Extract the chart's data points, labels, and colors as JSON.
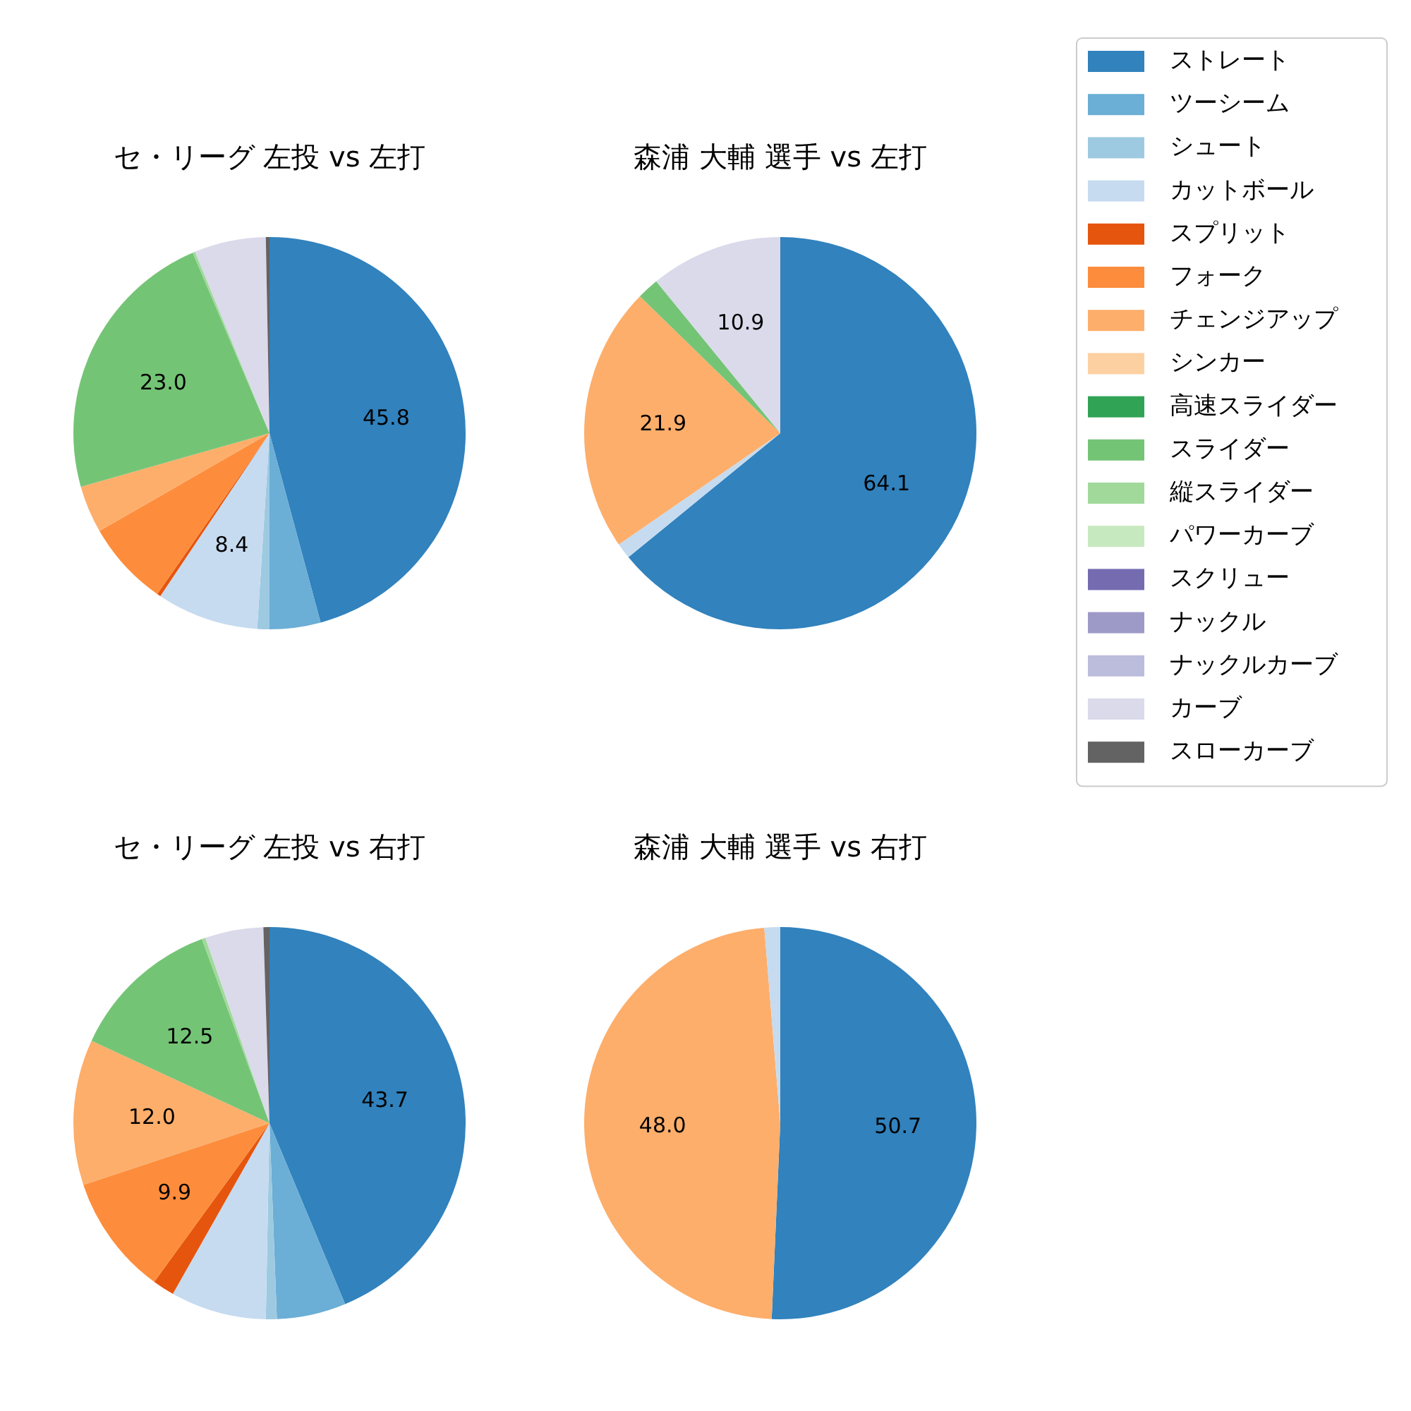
{
  "chart_data": [
    {
      "type": "pie",
      "title": "セ・リーグ 左投 vs 左打",
      "legend": "right",
      "categories": [
        "ストレート",
        "ツーシーム",
        "シュート",
        "カットボール",
        "スプリット",
        "フォーク",
        "チェンジアップ",
        "シンカー",
        "高速スライダー",
        "スライダー",
        "縦スライダー",
        "パワーカーブ",
        "スクリュー",
        "ナックル",
        "ナックルカーブ",
        "カーブ",
        "スローカーブ"
      ],
      "colors": [
        "#3182bd",
        "#6baed6",
        "#9ecae1",
        "#c6dbef",
        "#e6550d",
        "#fd8d3c",
        "#fdae6b",
        "#fdd0a2",
        "#31a354",
        "#74c476",
        "#a1d99b",
        "#c7e9c0",
        "#756bb1",
        "#9e9ac8",
        "#bcbddc",
        "#dadaeb",
        "#636363"
      ],
      "values": [
        45.8,
        4.2,
        1.0,
        8.4,
        0.3,
        7.0,
        3.9,
        0,
        0,
        23.0,
        0.2,
        0,
        0,
        0,
        0,
        5.9,
        0.3
      ],
      "value_labels": [
        "45.8",
        null,
        null,
        "8.4",
        null,
        null,
        null,
        null,
        null,
        "23.0",
        null,
        null,
        null,
        null,
        null,
        null,
        null
      ]
    },
    {
      "type": "pie",
      "title": "森浦 大輔 選手 vs 左打",
      "categories": [
        null,
        null,
        null,
        null,
        null
      ],
      "colors": [
        "#3182bd",
        "#c6dbef",
        "#fdae6b",
        "#74c476",
        "#dadaeb"
      ],
      "values": [
        64.1,
        1.3,
        21.9,
        1.8,
        10.9
      ],
      "value_labels": [
        "64.1",
        null,
        "21.9",
        null,
        "10.9"
      ]
    },
    {
      "type": "pie",
      "title": "セ・リーグ 左投 vs 右打",
      "categories": [
        null,
        null,
        null,
        null,
        null,
        null,
        null,
        null,
        null,
        null,
        null
      ],
      "colors": [
        "#3182bd",
        "#6baed6",
        "#9ecae1",
        "#c6dbef",
        "#e6550d",
        "#fd8d3c",
        "#fdae6b",
        "#74c476",
        "#a1d99b",
        "#dadaeb",
        "#636363"
      ],
      "values": [
        43.7,
        5.7,
        0.9,
        7.9,
        1.8,
        9.9,
        12.0,
        12.5,
        0.3,
        4.8,
        0.5
      ],
      "value_labels": [
        "43.7",
        null,
        null,
        null,
        null,
        "9.9",
        "12.0",
        "12.5",
        null,
        null,
        null
      ]
    },
    {
      "type": "pie",
      "title": "森浦 大輔 選手 vs 右打",
      "categories": [
        null,
        null,
        null
      ],
      "colors": [
        "#3182bd",
        "#fdae6b",
        "#c6dbef"
      ],
      "values": [
        50.7,
        48.0,
        1.3
      ],
      "value_labels": [
        "50.7",
        "48.0",
        null
      ]
    }
  ]
}
